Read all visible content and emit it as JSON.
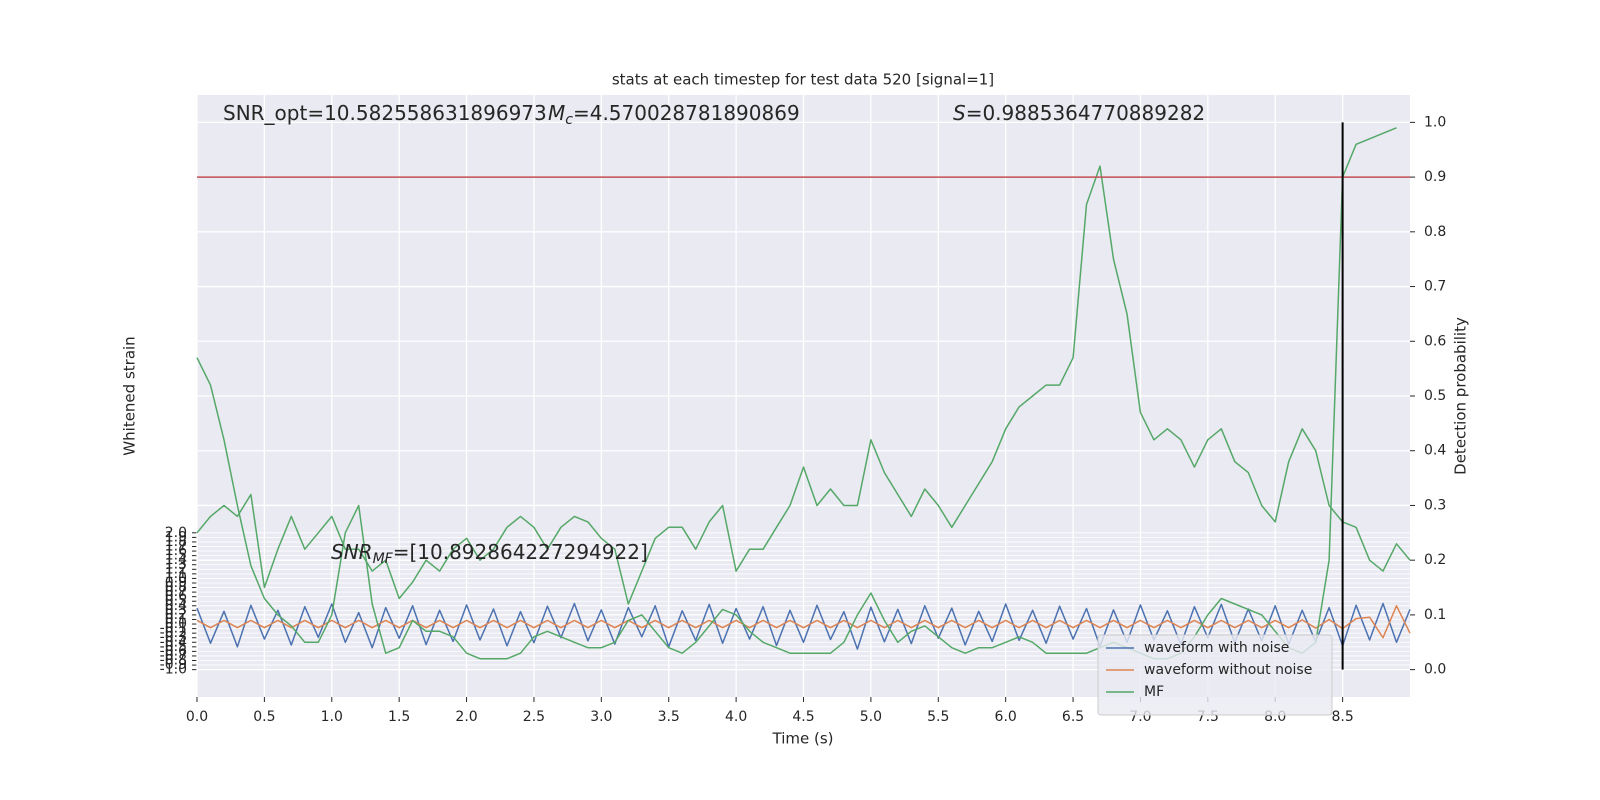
{
  "chart_data": {
    "type": "line",
    "title": "stats at each timestep for test data 520 [signal=1]",
    "xlabel": "Time (s)",
    "ylabel": "Whitened strain",
    "y2label": "Detection probability",
    "annotations": [
      {
        "parts": [
          {
            "text": "SNR_opt=10.582558631896973"
          }
        ]
      },
      {
        "parts": [
          {
            "text": "M",
            "italic": true
          },
          {
            "text": "c",
            "italic": true,
            "sub": true
          },
          {
            "text": "=4.570028781890869"
          }
        ]
      },
      {
        "parts": [
          {
            "text": "S",
            "italic": true
          },
          {
            "text": "=0.9885364770889282"
          }
        ]
      },
      {
        "parts": [
          {
            "text": "SNR",
            "italic": true
          },
          {
            "text": "MF",
            "italic": true,
            "sub": true
          },
          {
            "text": "=[10.892864227294922]"
          }
        ]
      }
    ],
    "x": [
      0.0,
      0.1,
      0.2,
      0.3,
      0.4,
      0.5,
      0.6,
      0.7,
      0.8,
      0.9,
      1.0,
      1.1,
      1.2,
      1.3,
      1.4,
      1.5,
      1.6,
      1.7,
      1.8,
      1.9,
      2.0,
      2.1,
      2.2,
      2.3,
      2.4,
      2.5,
      2.6,
      2.7,
      2.8,
      2.9,
      3.0,
      3.1,
      3.2,
      3.3,
      3.4,
      3.5,
      3.6,
      3.7,
      3.8,
      3.9,
      4.0,
      4.1,
      4.2,
      4.3,
      4.4,
      4.5,
      4.6,
      4.7,
      4.8,
      4.9,
      5.0,
      5.1,
      5.2,
      5.3,
      5.4,
      5.5,
      5.6,
      5.7,
      5.8,
      5.9,
      6.0,
      6.1,
      6.2,
      6.3,
      6.4,
      6.5,
      6.6,
      6.7,
      6.8,
      6.9,
      7.0,
      7.1,
      7.2,
      7.3,
      7.4,
      7.5,
      7.6,
      7.7,
      7.8,
      7.9,
      8.0,
      8.1,
      8.2,
      8.3,
      8.4,
      8.5,
      8.6,
      8.7,
      8.8,
      8.9,
      9.0
    ],
    "series": [
      {
        "name": "waveform with noise",
        "color": "#4c72b0",
        "axis": "y",
        "values": [
          0.35,
          -0.42,
          0.28,
          -0.5,
          0.41,
          -0.33,
          0.3,
          -0.46,
          0.38,
          -0.29,
          0.44,
          -0.4,
          0.25,
          -0.52,
          0.36,
          -0.31,
          0.4,
          -0.45,
          0.3,
          -0.38,
          0.42,
          -0.35,
          0.33,
          -0.48,
          0.27,
          -0.41,
          0.39,
          -0.3,
          0.45,
          -0.37,
          0.31,
          -0.44,
          0.36,
          -0.28,
          0.4,
          -0.5,
          0.29,
          -0.36,
          0.43,
          -0.42,
          0.34,
          -0.33,
          0.38,
          -0.47,
          0.3,
          -0.4,
          0.41,
          -0.34,
          0.27,
          -0.55,
          0.37,
          -0.39,
          0.32,
          -0.43,
          0.4,
          -0.31,
          0.35,
          -0.46,
          0.28,
          -0.38,
          0.44,
          -0.36,
          0.3,
          -0.42,
          0.39,
          -0.33,
          0.34,
          -0.49,
          0.31,
          -0.4,
          0.42,
          -0.35,
          0.29,
          -0.45,
          0.38,
          -0.3,
          0.43,
          -0.41,
          0.33,
          -0.37,
          0.4,
          -0.44,
          0.3,
          -0.39,
          0.36,
          -0.48,
          0.41,
          -0.35,
          0.45,
          -0.4,
          0.32
        ]
      },
      {
        "name": "waveform without noise",
        "color": "#dd8452",
        "axis": "y",
        "values": [
          0.08,
          -0.08,
          0.08,
          -0.08,
          0.08,
          -0.08,
          0.08,
          -0.08,
          0.08,
          -0.08,
          0.08,
          -0.08,
          0.08,
          -0.08,
          0.08,
          -0.08,
          0.08,
          -0.08,
          0.08,
          -0.08,
          0.08,
          -0.08,
          0.08,
          -0.08,
          0.08,
          -0.08,
          0.08,
          -0.08,
          0.08,
          -0.08,
          0.08,
          -0.08,
          0.08,
          -0.08,
          0.08,
          -0.08,
          0.08,
          -0.08,
          0.08,
          -0.08,
          0.08,
          -0.08,
          0.08,
          -0.08,
          0.08,
          -0.08,
          0.08,
          -0.08,
          0.08,
          -0.08,
          0.08,
          -0.08,
          0.08,
          -0.08,
          0.08,
          -0.08,
          0.08,
          -0.08,
          0.08,
          -0.08,
          0.08,
          -0.08,
          0.08,
          -0.08,
          0.08,
          -0.08,
          0.08,
          -0.08,
          0.08,
          -0.08,
          0.08,
          -0.08,
          0.08,
          -0.08,
          0.08,
          -0.08,
          0.08,
          -0.08,
          0.08,
          -0.08,
          0.08,
          -0.08,
          0.09,
          -0.09,
          0.1,
          -0.1,
          0.12,
          0.15,
          -0.3,
          0.4,
          -0.2
        ]
      },
      {
        "name": "MF",
        "color": "#55a868",
        "axis": "y2",
        "values": [
          0.57,
          0.52,
          0.42,
          0.3,
          0.19,
          0.13,
          0.1,
          0.08,
          0.05,
          0.05,
          0.1,
          0.25,
          0.3,
          0.12,
          0.03,
          0.04,
          0.09,
          0.07,
          0.07,
          0.06,
          0.03,
          0.02,
          0.02,
          0.02,
          0.03,
          0.06,
          0.07,
          0.06,
          0.05,
          0.04,
          0.04,
          0.05,
          0.09,
          0.1,
          0.07,
          0.04,
          0.03,
          0.05,
          0.08,
          0.11,
          0.1,
          0.07,
          0.05,
          0.04,
          0.03,
          0.03,
          0.03,
          0.03,
          0.05,
          0.1,
          0.14,
          0.09,
          0.05,
          0.07,
          0.08,
          0.06,
          0.04,
          0.03,
          0.04,
          0.04,
          0.05,
          0.06,
          0.05,
          0.03,
          0.03,
          0.03,
          0.03,
          0.04,
          0.05,
          0.04,
          0.03,
          0.02,
          0.02,
          0.03,
          0.06,
          0.1,
          0.13,
          0.12,
          0.11,
          0.1,
          0.07,
          0.04,
          0.03,
          0.05,
          0.2,
          0.9,
          0.96,
          0.97,
          0.98,
          0.99,
          null
        ]
      },
      {
        "color": "#55a868",
        "axis": "y2",
        "values": [
          0.25,
          0.28,
          0.3,
          0.28,
          0.32,
          0.15,
          0.22,
          0.28,
          0.22,
          0.25,
          0.28,
          0.22,
          0.22,
          0.18,
          0.2,
          0.13,
          0.16,
          0.2,
          0.18,
          0.22,
          0.24,
          0.2,
          0.22,
          0.26,
          0.28,
          0.26,
          0.22,
          0.26,
          0.28,
          0.27,
          0.24,
          0.22,
          0.12,
          0.18,
          0.24,
          0.26,
          0.26,
          0.22,
          0.27,
          0.3,
          0.18,
          0.22,
          0.22,
          0.26,
          0.3,
          0.37,
          0.3,
          0.33,
          0.3,
          0.3,
          0.42,
          0.36,
          0.32,
          0.28,
          0.33,
          0.3,
          0.26,
          0.3,
          0.34,
          0.38,
          0.44,
          0.48,
          0.5,
          0.52,
          0.52,
          0.57,
          0.85,
          0.92,
          0.75,
          0.65,
          0.47,
          0.42,
          0.44,
          0.42,
          0.37,
          0.42,
          0.44,
          0.38,
          0.36,
          0.3,
          0.27,
          0.38,
          0.44,
          0.4,
          0.3,
          0.27,
          0.26,
          0.2,
          0.18,
          0.23,
          0.2
        ]
      }
    ],
    "threshold_line": {
      "value": 0.9,
      "color": "#c44e52",
      "axis": "y2"
    },
    "marker_line": {
      "x": 8.5,
      "span": [
        0,
        1
      ],
      "color": "#000000",
      "axis": "y2"
    },
    "xlim": [
      0,
      9
    ],
    "xticks": [
      {
        "value": 0,
        "label": "0.0"
      },
      0.5,
      {
        "value": 1,
        "label": "1.0"
      },
      1.5,
      {
        "value": 2,
        "label": "2.0"
      },
      2.5,
      {
        "value": 3,
        "label": "3.0"
      },
      3.5,
      {
        "value": 4,
        "label": "4.0"
      },
      4.5,
      {
        "value": 5,
        "label": "5.0"
      },
      5.5,
      {
        "value": 6,
        "label": "6.0"
      },
      6.5,
      {
        "value": 7,
        "label": "7.0"
      },
      7.5,
      {
        "value": 8,
        "label": "8.0"
      },
      8.5
    ],
    "ylim": [
      -1.6,
      11.6
    ],
    "yticks": [
      {
        "value": -1,
        "label": "-1.0"
      },
      -0.9,
      -0.8,
      -0.7,
      -0.6,
      -0.5,
      -0.4,
      -0.3,
      -0.2,
      -0.1,
      {
        "value": 0,
        "label": "0.0"
      },
      0.1,
      0.2,
      0.3,
      0.4,
      0.5,
      0.6,
      0.7,
      0.8,
      0.9,
      {
        "value": 1,
        "label": "1.0"
      },
      1.1,
      1.2,
      1.3,
      1.4,
      1.5,
      1.6,
      1.7,
      1.8,
      1.9,
      {
        "value": 2,
        "label": "2.0"
      }
    ],
    "y2lim": [
      -0.05,
      1.05
    ],
    "y2ticks": [
      {
        "value": 0,
        "label": "0.0"
      },
      0.1,
      0.2,
      0.3,
      0.4,
      0.5,
      0.6,
      0.7,
      0.8,
      0.9,
      {
        "value": 1,
        "label": "1.0"
      }
    ],
    "grid": true,
    "legend": "lower right"
  }
}
